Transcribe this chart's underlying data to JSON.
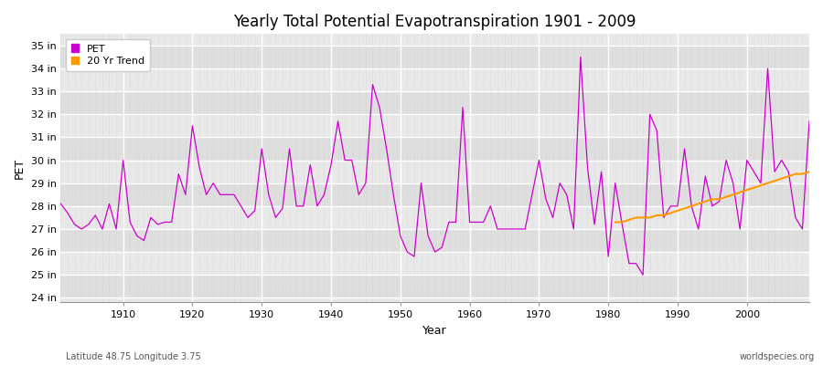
{
  "title": "Yearly Total Potential Evapotranspiration 1901 - 2009",
  "xlabel": "Year",
  "ylabel": "PET",
  "subtitle_left": "Latitude 48.75 Longitude 3.75",
  "subtitle_right": "worldspecies.org",
  "pet_color": "#cc00cc",
  "trend_color": "#ff9900",
  "fig_bg_color": "#ffffff",
  "plot_bg_color": "#e8e8e8",
  "ylim": [
    23.8,
    35.5
  ],
  "yticks": [
    24,
    25,
    26,
    27,
    28,
    29,
    30,
    31,
    32,
    33,
    34,
    35
  ],
  "ytick_labels": [
    "24 in",
    "25 in",
    "26 in",
    "27 in",
    "28 in",
    "29 in",
    "30 in",
    "31 in",
    "32 in",
    "33 in",
    "34 in",
    "35 in"
  ],
  "years": [
    1901,
    1902,
    1903,
    1904,
    1905,
    1906,
    1907,
    1908,
    1909,
    1910,
    1911,
    1912,
    1913,
    1914,
    1915,
    1916,
    1917,
    1918,
    1919,
    1920,
    1921,
    1922,
    1923,
    1924,
    1925,
    1926,
    1927,
    1928,
    1929,
    1930,
    1931,
    1932,
    1933,
    1934,
    1935,
    1936,
    1937,
    1938,
    1939,
    1940,
    1941,
    1942,
    1943,
    1944,
    1945,
    1946,
    1947,
    1948,
    1949,
    1950,
    1951,
    1952,
    1953,
    1954,
    1955,
    1956,
    1957,
    1958,
    1959,
    1960,
    1961,
    1962,
    1963,
    1964,
    1965,
    1966,
    1967,
    1968,
    1969,
    1970,
    1971,
    1972,
    1973,
    1974,
    1975,
    1976,
    1977,
    1978,
    1979,
    1980,
    1981,
    1982,
    1983,
    1984,
    1985,
    1986,
    1987,
    1988,
    1989,
    1990,
    1991,
    1992,
    1993,
    1994,
    1995,
    1996,
    1997,
    1998,
    1999,
    2000,
    2001,
    2002,
    2003,
    2004,
    2005,
    2006,
    2007,
    2008,
    2009
  ],
  "pet": [
    28.1,
    27.7,
    27.2,
    27.0,
    27.2,
    27.6,
    27.0,
    28.1,
    27.0,
    30.0,
    27.3,
    26.7,
    26.5,
    27.5,
    27.2,
    27.3,
    27.3,
    29.4,
    28.5,
    31.5,
    29.7,
    28.5,
    29.0,
    28.5,
    28.5,
    28.5,
    28.0,
    27.5,
    27.8,
    30.5,
    28.5,
    27.5,
    27.9,
    30.5,
    28.0,
    28.0,
    29.8,
    28.0,
    28.5,
    29.8,
    31.7,
    30.0,
    30.0,
    28.5,
    29.0,
    33.3,
    32.3,
    30.5,
    28.5,
    26.7,
    26.0,
    25.8,
    29.0,
    26.7,
    26.0,
    26.2,
    27.3,
    27.3,
    32.3,
    27.3,
    27.3,
    27.3,
    28.0,
    27.0,
    27.0,
    27.0,
    27.0,
    27.0,
    28.5,
    30.0,
    28.3,
    27.5,
    29.0,
    28.5,
    27.0,
    34.5,
    29.7,
    27.2,
    29.5,
    25.8,
    29.0,
    27.2,
    25.5,
    25.5,
    25.0,
    32.0,
    31.3,
    27.5,
    28.0,
    28.0,
    30.5,
    28.0,
    27.0,
    29.3,
    28.0,
    28.2,
    30.0,
    29.0,
    27.0,
    30.0,
    29.5,
    29.0,
    34.0,
    29.5,
    30.0,
    29.5,
    27.5,
    27.0,
    31.7
  ],
  "trend_years": [
    1981,
    1982,
    1983,
    1984,
    1985,
    1986,
    1987,
    1988,
    1989,
    1990,
    1991,
    1992,
    1993,
    1994,
    1995,
    1996,
    1997,
    1998,
    1999,
    2000,
    2001,
    2002,
    2003,
    2004,
    2005,
    2006,
    2007,
    2008,
    2009
  ],
  "trend": [
    27.3,
    27.3,
    27.4,
    27.5,
    27.5,
    27.5,
    27.6,
    27.6,
    27.7,
    27.8,
    27.9,
    28.0,
    28.1,
    28.2,
    28.3,
    28.3,
    28.4,
    28.5,
    28.6,
    28.7,
    28.8,
    28.9,
    29.0,
    29.1,
    29.2,
    29.3,
    29.4,
    29.4,
    29.5
  ]
}
